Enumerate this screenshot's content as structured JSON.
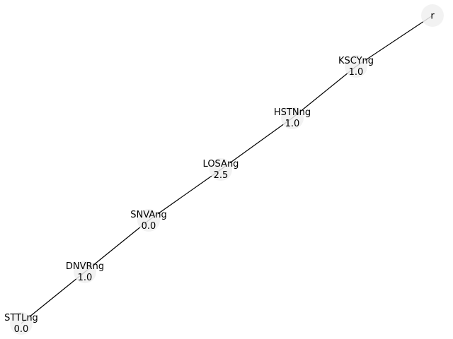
{
  "graph": {
    "nodes": [
      {
        "id": "r",
        "name": "r",
        "value": ""
      },
      {
        "id": "KSCYng",
        "name": "KSCYng",
        "value": "1.0"
      },
      {
        "id": "HSTNng",
        "name": "HSTNng",
        "value": "1.0"
      },
      {
        "id": "LOSAng",
        "name": "LOSAng",
        "value": "2.5"
      },
      {
        "id": "SNVAng",
        "name": "SNVAng",
        "value": "0.0"
      },
      {
        "id": "DNVRng",
        "name": "DNVRng",
        "value": "1.0"
      },
      {
        "id": "STTLng",
        "name": "STTLng",
        "value": "0.0"
      }
    ],
    "edges": [
      [
        "r",
        "KSCYng"
      ],
      [
        "KSCYng",
        "HSTNng"
      ],
      [
        "HSTNng",
        "LOSAng"
      ],
      [
        "LOSAng",
        "SNVAng"
      ],
      [
        "SNVAng",
        "DNVRng"
      ],
      [
        "DNVRng",
        "STTLng"
      ]
    ]
  }
}
